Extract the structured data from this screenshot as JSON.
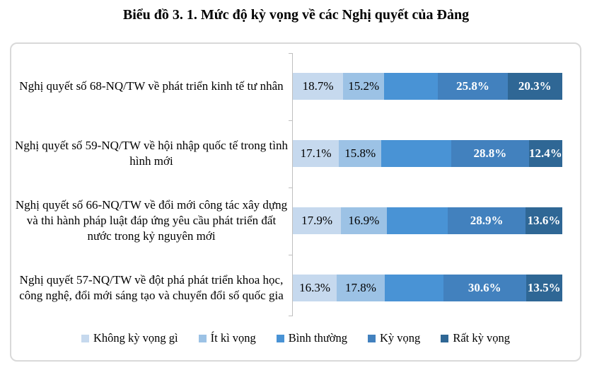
{
  "title": "Biểu đồ 3. 1. Mức độ kỳ vọng về các Nghị quyết của Đảng",
  "colors": {
    "frame_border": "#D9D9D9",
    "axis": "#BFBFBF",
    "background": "#FFFFFF",
    "title_text": "#000000"
  },
  "chart_data": {
    "type": "bar",
    "orientation": "horizontal",
    "stacked": true,
    "unit": "percent",
    "xlim": [
      0,
      100
    ],
    "grid": false,
    "legend_position": "bottom",
    "title": "Biểu đồ 3. 1. Mức độ kỳ vọng về các Nghị quyết của Đảng",
    "categories": [
      "Nghị quyết số 68-NQ/TW về phát triển kinh tế tư nhân",
      "Nghị quyết số 59-NQ/TW về hội nhập quốc tế trong tình hình mới",
      "Nghị quyết số 66-NQ/TW về đổi mới công tác xây dựng và thi hành pháp luật đáp ứng yêu cầu phát triển đất nước trong kỷ nguyên mới",
      "Nghị quyết 57-NQ/TW về đột phá phát triển khoa học, công nghệ, đổi mới sáng tạo và chuyển đổi số quốc gia"
    ],
    "series": [
      {
        "name": "Không kỳ vọng gì",
        "color": "#C6D9EE",
        "values": [
          18.7,
          17.1,
          17.9,
          16.3
        ],
        "data_labels": [
          "18.7%",
          "17.1%",
          "17.9%",
          "16.3%"
        ],
        "label_style": "black"
      },
      {
        "name": "Ít kì vọng",
        "color": "#9CC2E5",
        "values": [
          15.2,
          15.8,
          16.9,
          17.8
        ],
        "data_labels": [
          "15.2%",
          "15.8%",
          "16.9%",
          "17.8%"
        ],
        "label_style": "black"
      },
      {
        "name": "Bình thường",
        "color": "#4993D5",
        "values": [
          20.0,
          25.9,
          22.7,
          21.8
        ],
        "data_labels": [
          "",
          "",
          "",
          ""
        ],
        "label_style": "none"
      },
      {
        "name": "Kỳ vọng",
        "color": "#4281BE",
        "values": [
          25.8,
          28.8,
          28.9,
          30.6
        ],
        "data_labels": [
          "25.8%",
          "28.8%",
          "28.9%",
          "30.6%"
        ],
        "label_style": "white-bold"
      },
      {
        "name": "Rất kỳ vọng",
        "color": "#2F6795",
        "values": [
          20.3,
          12.4,
          13.6,
          13.5
        ],
        "data_labels": [
          "20.3%",
          "12.4%",
          "13.6%",
          "13.5%"
        ],
        "label_style": "white-bold"
      }
    ]
  }
}
